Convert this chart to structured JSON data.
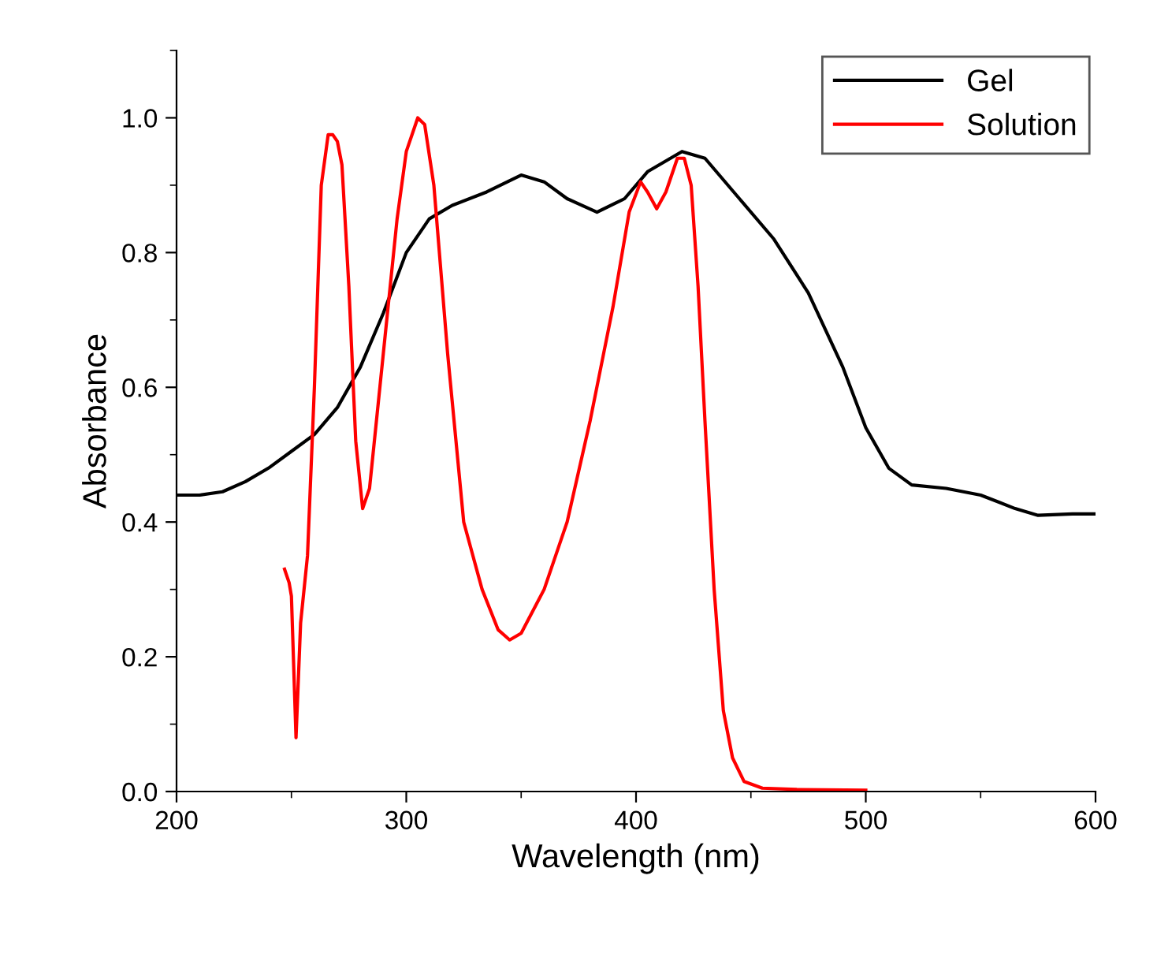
{
  "chart_data": {
    "type": "line",
    "xlabel": "Wavelength (nm)",
    "ylabel": "Absorbance",
    "xlim": [
      200,
      600
    ],
    "xticks": [
      200,
      300,
      400,
      500,
      600
    ],
    "ylim": [
      0,
      1.1
    ],
    "yticks": [
      {
        "value": 0,
        "label": "0.0"
      },
      0.2,
      0.4,
      0.6,
      0.8,
      {
        "value": 1,
        "label": "1.0"
      }
    ],
    "grid": false,
    "legend": "top right",
    "marker": "none",
    "line_style": "solid",
    "series": [
      {
        "name": "Gel",
        "color": "#000000",
        "x": [
          200,
          210,
          220,
          230,
          240,
          250,
          260,
          270,
          280,
          290,
          300,
          310,
          320,
          335,
          350,
          360,
          370,
          383,
          395,
          405,
          420,
          430,
          445,
          460,
          475,
          490,
          500,
          510,
          520,
          535,
          550,
          565,
          575,
          590,
          600
        ],
        "values": [
          0.44,
          0.44,
          0.445,
          0.46,
          0.48,
          0.505,
          0.53,
          0.57,
          0.63,
          0.71,
          0.8,
          0.85,
          0.87,
          0.89,
          0.915,
          0.905,
          0.88,
          0.86,
          0.88,
          0.92,
          0.95,
          0.94,
          0.88,
          0.82,
          0.74,
          0.63,
          0.54,
          0.48,
          0.455,
          0.45,
          0.44,
          0.42,
          0.41,
          0.412,
          0.412
        ]
      },
      {
        "name": "Solution",
        "color": "#ff0000",
        "x": [
          247,
          249,
          250,
          252,
          254,
          257,
          260,
          263,
          266,
          268,
          270,
          272,
          275,
          278,
          281,
          284,
          290,
          296,
          300,
          305,
          308,
          312,
          318,
          325,
          333,
          340,
          345,
          350,
          360,
          370,
          380,
          390,
          397,
          402,
          405,
          409,
          413,
          418,
          421,
          424,
          427,
          430,
          434,
          438,
          442,
          447,
          455,
          470,
          500
        ],
        "values": [
          0.33,
          0.31,
          0.29,
          0.08,
          0.25,
          0.35,
          0.6,
          0.9,
          0.975,
          0.975,
          0.965,
          0.93,
          0.75,
          0.52,
          0.42,
          0.45,
          0.65,
          0.85,
          0.95,
          1.0,
          0.99,
          0.9,
          0.65,
          0.4,
          0.3,
          0.24,
          0.225,
          0.235,
          0.3,
          0.4,
          0.55,
          0.72,
          0.86,
          0.905,
          0.89,
          0.865,
          0.89,
          0.94,
          0.94,
          0.9,
          0.75,
          0.55,
          0.3,
          0.12,
          0.05,
          0.015,
          0.005,
          0.003,
          0.002
        ]
      }
    ]
  }
}
